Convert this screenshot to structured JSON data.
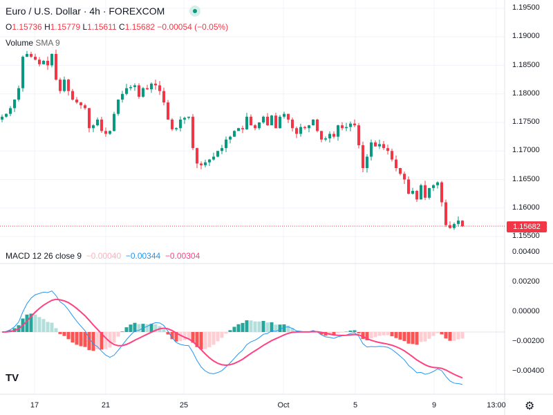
{
  "header": {
    "title": "Euro / U.S. Dollar · 4h · FOREXCOM",
    "ohlc": {
      "o_label": "O",
      "o": "1.15736",
      "h_label": "H",
      "h": "1.15779",
      "l_label": "L",
      "l": "1.15611",
      "c_label": "C",
      "c": "1.15682",
      "change": "−0.00054 (−0.05%)"
    },
    "volume_label": "Volume",
    "volume_params": "SMA 9"
  },
  "macd_legend": {
    "label": "MACD",
    "params": "12 26 close 9",
    "hist": "−0.00040",
    "macd": "−0.00344",
    "signal": "−0.00304"
  },
  "price_axis": [
    "1.19500",
    "1.19000",
    "1.18500",
    "1.18000",
    "1.17500",
    "1.17000",
    "1.16500",
    "1.16000",
    "1.15500"
  ],
  "last_price": "1.15682",
  "macd_axis": [
    "0.00400",
    "0.00200",
    "0.00000",
    "−0.00200",
    "−0.00400"
  ],
  "time_axis": [
    "17",
    "21",
    "25",
    "Oct",
    "5",
    "9",
    "13:00"
  ],
  "colors": {
    "up": "#089981",
    "down": "#f23645",
    "macd": "#2196f3",
    "signal": "#ff4081"
  },
  "chart_data": {
    "type": "candlestick",
    "closes": [
      1.176,
      1.1765,
      1.1775,
      1.179,
      1.181,
      1.1865,
      1.187,
      1.1865,
      1.186,
      1.1852,
      1.1858,
      1.185,
      1.187,
      1.1825,
      1.1805,
      1.1825,
      1.1805,
      1.179,
      1.1785,
      1.178,
      1.1775,
      1.174,
      1.1745,
      1.1755,
      1.1735,
      1.173,
      1.1735,
      1.1765,
      1.179,
      1.18,
      1.181,
      1.1812,
      1.1815,
      1.1795,
      1.181,
      1.1808,
      1.1818,
      1.1815,
      1.1805,
      1.1785,
      1.1755,
      1.1738,
      1.174,
      1.1755,
      1.1758,
      1.176,
      1.1705,
      1.1678,
      1.1675,
      1.168,
      1.1685,
      1.169,
      1.17,
      1.1705,
      1.172,
      1.1725,
      1.1735,
      1.174,
      1.1738,
      1.176,
      1.1745,
      1.174,
      1.175,
      1.176,
      1.1745,
      1.1762,
      1.174,
      1.176,
      1.1765,
      1.1755,
      1.174,
      1.173,
      1.1742,
      1.174,
      1.1745,
      1.1755,
      1.1735,
      1.172,
      1.1722,
      1.173,
      1.1725,
      1.1745,
      1.174,
      1.1742,
      1.1748,
      1.1745,
      1.171,
      1.167,
      1.169,
      1.1715,
      1.1708,
      1.1712,
      1.1705,
      1.17,
      1.1685,
      1.167,
      1.166,
      1.165,
      1.1625,
      1.163,
      1.1615,
      1.164,
      1.1618,
      1.1635,
      1.164,
      1.1645,
      1.161,
      1.157,
      1.1565,
      1.1572,
      1.1578,
      1.1568
    ],
    "ylim": [
      1.155,
      1.195
    ],
    "macd_ylim": [
      -0.004,
      0.004
    ]
  }
}
